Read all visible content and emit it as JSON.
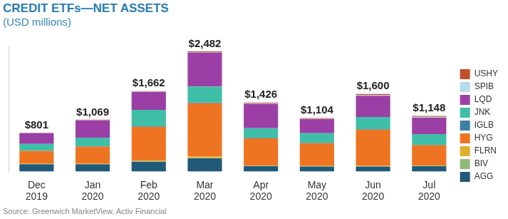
{
  "chart_data": {
    "type": "bar",
    "title": "CREDIT ETFs—NET ASSETS",
    "subtitle": "(USD millions)",
    "source": "Source: Greenwich MarketView, Activ Financial",
    "categories": [
      "Dec 2019",
      "Jan 2020",
      "Feb 2020",
      "Mar 2020",
      "Apr 2020",
      "May 2020",
      "Jun 2020",
      "Jul 2020"
    ],
    "series": [
      {
        "name": "AGG",
        "color": "#215a78",
        "values": [
          150,
          150,
          200,
          270,
          110,
          100,
          100,
          110
        ]
      },
      {
        "name": "BIV",
        "color": "#8fb97b",
        "values": [
          5,
          5,
          10,
          10,
          5,
          5,
          5,
          5
        ]
      },
      {
        "name": "FLRN",
        "color": "#e0b030",
        "values": [
          10,
          10,
          15,
          30,
          10,
          8,
          10,
          10
        ]
      },
      {
        "name": "HYG",
        "color": "#ee7422",
        "values": [
          260,
          350,
          700,
          1100,
          560,
          470,
          750,
          420
        ]
      },
      {
        "name": "IGLB",
        "color": "#3b7fa8",
        "values": [
          5,
          5,
          10,
          15,
          10,
          8,
          10,
          8
        ]
      },
      {
        "name": "JNK",
        "color": "#3fbfa8",
        "values": [
          140,
          180,
          340,
          330,
          200,
          200,
          250,
          220
        ]
      },
      {
        "name": "LQD",
        "color": "#9b3fa6",
        "values": [
          220,
          355,
          370,
          700,
          505,
          290,
          440,
          340
        ]
      },
      {
        "name": "SPIB",
        "color": "#b7d9ea",
        "values": [
          5,
          5,
          7,
          10,
          10,
          10,
          15,
          15
        ]
      },
      {
        "name": "USHY",
        "color": "#c0502a",
        "values": [
          6,
          9,
          10,
          17,
          16,
          13,
          20,
          20
        ]
      }
    ],
    "totals": [
      801,
      1069,
      1662,
      2482,
      1426,
      1104,
      1600,
      1148
    ],
    "total_labels": [
      "$801",
      "$1,069",
      "$1,662",
      "$2,482",
      "$1,426",
      "$1,104",
      "$1,600",
      "$1,148"
    ],
    "ylim": [
      0,
      2600
    ],
    "yticks": [],
    "stacked": true,
    "grid": false,
    "legend": "right",
    "tick_labels": "x"
  }
}
